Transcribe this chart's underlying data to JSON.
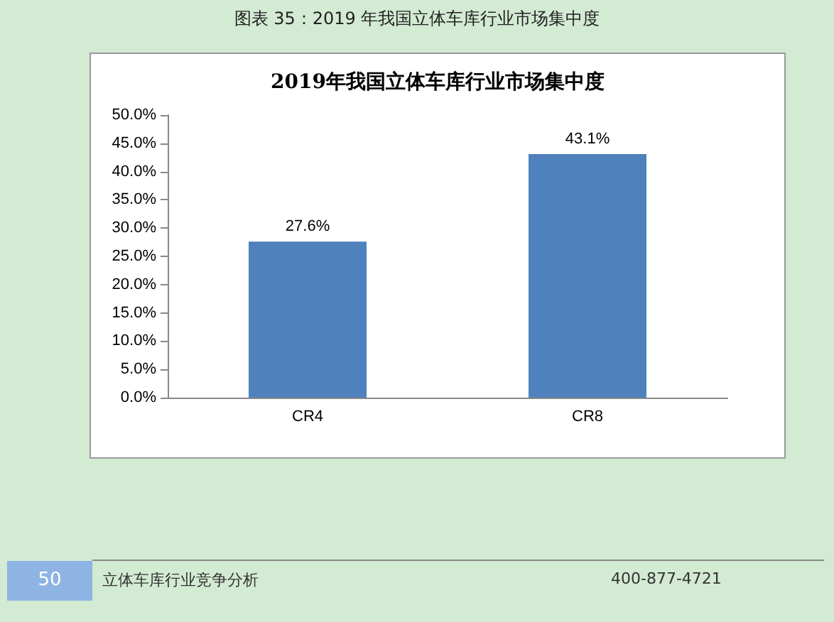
{
  "chart_data": {
    "type": "bar",
    "title": "图表 35：2019 年我国立体车库行业市场集中度",
    "subtitle": "2019年我国立体车库行业市场集中度",
    "categories": [
      "CR4",
      "CR8"
    ],
    "values": [
      27.6,
      43.1
    ],
    "color": "#4f81bd",
    "value_labels": [
      "27.6%",
      "43.1%"
    ],
    "ylim": [
      0,
      50
    ],
    "yticks": [
      {
        "value": 0,
        "label": "0.0%"
      },
      {
        "value": 5,
        "label": "5.0%"
      },
      {
        "value": 10,
        "label": "10.0%"
      },
      {
        "value": 15,
        "label": "15.0%"
      },
      {
        "value": 20,
        "label": "20.0%"
      },
      {
        "value": 25,
        "label": "25.0%"
      },
      {
        "value": 30,
        "label": "30.0%"
      },
      {
        "value": 35,
        "label": "35.0%"
      },
      {
        "value": 40,
        "label": "40.0%"
      },
      {
        "value": 45,
        "label": "45.0%"
      },
      {
        "value": 50,
        "label": "50.0%"
      }
    ],
    "grid": false,
    "annotations": [
      "50",
      "立体车库行业竞争分析",
      "400-877-4721"
    ]
  }
}
